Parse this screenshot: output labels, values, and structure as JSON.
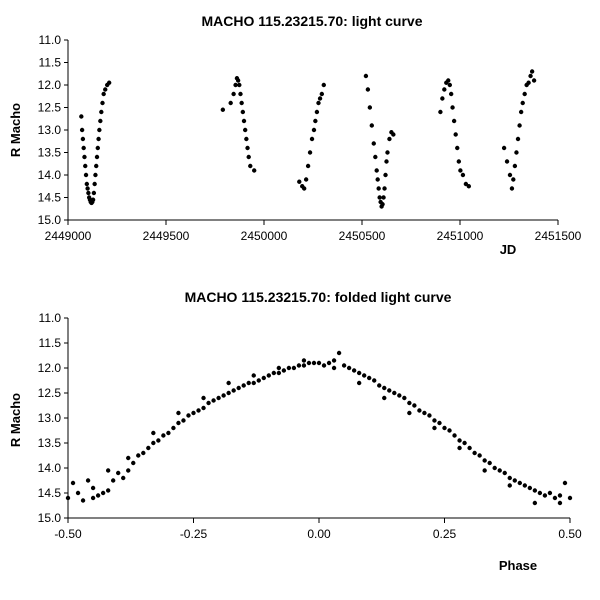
{
  "chart_data": [
    {
      "type": "scatter",
      "title": "MACHO 115.23215.70: light curve",
      "xlabel": "JD",
      "ylabel": "R Macho",
      "xlim": [
        2449000,
        2451500
      ],
      "ylim": [
        11.0,
        15.0
      ],
      "y_inverted": true,
      "grid": false,
      "legend": "none",
      "marker_color": "#000000",
      "x_ticks": [
        "2449000",
        "2449500",
        "2450000",
        "2450500",
        "2451000",
        "2451500"
      ],
      "y_ticks": [
        "11.0",
        "11.5",
        "12.0",
        "12.5",
        "13.0",
        "13.5",
        "14.0",
        "14.5",
        "15.0"
      ],
      "x_tick_values": [
        2449000,
        2449500,
        2450000,
        2450500,
        2451000,
        2451500
      ],
      "y_tick_values": [
        11.0,
        11.5,
        12.0,
        12.5,
        13.0,
        13.5,
        14.0,
        14.5,
        15.0
      ],
      "points": [
        [
          2449068,
          12.7
        ],
        [
          2449072,
          13.0
        ],
        [
          2449076,
          13.2
        ],
        [
          2449080,
          13.4
        ],
        [
          2449084,
          13.6
        ],
        [
          2449088,
          13.8
        ],
        [
          2449092,
          14.0
        ],
        [
          2449096,
          14.2
        ],
        [
          2449100,
          14.3
        ],
        [
          2449104,
          14.4
        ],
        [
          2449108,
          14.5
        ],
        [
          2449112,
          14.55
        ],
        [
          2449116,
          14.6
        ],
        [
          2449120,
          14.62
        ],
        [
          2449124,
          14.6
        ],
        [
          2449128,
          14.55
        ],
        [
          2449132,
          14.4
        ],
        [
          2449136,
          14.2
        ],
        [
          2449140,
          14.0
        ],
        [
          2449144,
          13.8
        ],
        [
          2449148,
          13.6
        ],
        [
          2449152,
          13.4
        ],
        [
          2449156,
          13.2
        ],
        [
          2449160,
          13.0
        ],
        [
          2449165,
          12.8
        ],
        [
          2449170,
          12.6
        ],
        [
          2449176,
          12.4
        ],
        [
          2449182,
          12.2
        ],
        [
          2449190,
          12.1
        ],
        [
          2449200,
          12.0
        ],
        [
          2449210,
          11.95
        ],
        [
          2449790,
          12.55
        ],
        [
          2449830,
          12.4
        ],
        [
          2449845,
          12.2
        ],
        [
          2449855,
          12.0
        ],
        [
          2449862,
          11.85
        ],
        [
          2449868,
          11.9
        ],
        [
          2449874,
          12.0
        ],
        [
          2449880,
          12.2
        ],
        [
          2449886,
          12.4
        ],
        [
          2449892,
          12.6
        ],
        [
          2449898,
          12.8
        ],
        [
          2449904,
          13.0
        ],
        [
          2449910,
          13.2
        ],
        [
          2449916,
          13.4
        ],
        [
          2449922,
          13.6
        ],
        [
          2449930,
          13.8
        ],
        [
          2449950,
          13.9
        ],
        [
          2450180,
          14.15
        ],
        [
          2450195,
          14.25
        ],
        [
          2450205,
          14.3
        ],
        [
          2450215,
          14.1
        ],
        [
          2450225,
          13.8
        ],
        [
          2450235,
          13.5
        ],
        [
          2450245,
          13.2
        ],
        [
          2450255,
          13.0
        ],
        [
          2450262,
          12.8
        ],
        [
          2450270,
          12.6
        ],
        [
          2450278,
          12.4
        ],
        [
          2450286,
          12.3
        ],
        [
          2450295,
          12.2
        ],
        [
          2450305,
          12.0
        ],
        [
          2450520,
          11.8
        ],
        [
          2450530,
          12.1
        ],
        [
          2450540,
          12.5
        ],
        [
          2450550,
          12.9
        ],
        [
          2450560,
          13.3
        ],
        [
          2450568,
          13.6
        ],
        [
          2450575,
          13.9
        ],
        [
          2450580,
          14.1
        ],
        [
          2450585,
          14.3
        ],
        [
          2450590,
          14.5
        ],
        [
          2450595,
          14.6
        ],
        [
          2450600,
          14.7
        ],
        [
          2450605,
          14.65
        ],
        [
          2450610,
          14.5
        ],
        [
          2450615,
          14.3
        ],
        [
          2450620,
          14.0
        ],
        [
          2450625,
          13.7
        ],
        [
          2450630,
          13.5
        ],
        [
          2450640,
          13.2
        ],
        [
          2450650,
          13.05
        ],
        [
          2450660,
          13.1
        ],
        [
          2450900,
          12.6
        ],
        [
          2450910,
          12.3
        ],
        [
          2450920,
          12.1
        ],
        [
          2450930,
          11.95
        ],
        [
          2450940,
          11.9
        ],
        [
          2450948,
          12.0
        ],
        [
          2450955,
          12.2
        ],
        [
          2450962,
          12.5
        ],
        [
          2450970,
          12.8
        ],
        [
          2450978,
          13.1
        ],
        [
          2450986,
          13.4
        ],
        [
          2450994,
          13.7
        ],
        [
          2451002,
          13.9
        ],
        [
          2451015,
          14.0
        ],
        [
          2451030,
          14.2
        ],
        [
          2451045,
          14.25
        ],
        [
          2451225,
          13.4
        ],
        [
          2451240,
          13.7
        ],
        [
          2451255,
          14.0
        ],
        [
          2451265,
          14.3
        ],
        [
          2451272,
          14.1
        ],
        [
          2451280,
          13.8
        ],
        [
          2451288,
          13.5
        ],
        [
          2451296,
          13.2
        ],
        [
          2451304,
          12.9
        ],
        [
          2451312,
          12.6
        ],
        [
          2451320,
          12.4
        ],
        [
          2451330,
          12.2
        ],
        [
          2451340,
          12.0
        ],
        [
          2451350,
          11.95
        ],
        [
          2451360,
          11.8
        ],
        [
          2451368,
          11.7
        ],
        [
          2451378,
          11.9
        ]
      ]
    },
    {
      "type": "scatter",
      "title": "MACHO 115.23215.70: folded light curve",
      "xlabel": "Phase",
      "ylabel": "R Macho",
      "xlim": [
        -0.5,
        0.5
      ],
      "ylim": [
        11.0,
        15.0
      ],
      "y_inverted": true,
      "grid": false,
      "legend": "none",
      "marker_color": "#000000",
      "x_ticks": [
        "-0.50",
        "-0.25",
        "0.00",
        "0.25",
        "0.50"
      ],
      "y_ticks": [
        "11.0",
        "11.5",
        "12.0",
        "12.5",
        "13.0",
        "13.5",
        "14.0",
        "14.5",
        "15.0"
      ],
      "x_tick_values": [
        -0.5,
        -0.25,
        0.0,
        0.25,
        0.5
      ],
      "y_tick_values": [
        11.0,
        11.5,
        12.0,
        12.5,
        13.0,
        13.5,
        14.0,
        14.5,
        15.0
      ],
      "points": [
        [
          -0.5,
          14.6
        ],
        [
          -0.49,
          14.3
        ],
        [
          -0.48,
          14.5
        ],
        [
          -0.47,
          14.65
        ],
        [
          -0.46,
          14.25
        ],
        [
          -0.45,
          14.6
        ],
        [
          -0.44,
          14.55
        ],
        [
          -0.43,
          14.5
        ],
        [
          -0.42,
          14.45
        ],
        [
          -0.41,
          14.25
        ],
        [
          -0.4,
          14.1
        ],
        [
          -0.39,
          14.2
        ],
        [
          -0.38,
          14.05
        ],
        [
          -0.37,
          13.9
        ],
        [
          -0.36,
          13.75
        ],
        [
          -0.35,
          13.7
        ],
        [
          -0.34,
          13.6
        ],
        [
          -0.33,
          13.5
        ],
        [
          -0.32,
          13.45
        ],
        [
          -0.31,
          13.35
        ],
        [
          -0.3,
          13.3
        ],
        [
          -0.29,
          13.2
        ],
        [
          -0.28,
          13.1
        ],
        [
          -0.27,
          13.05
        ],
        [
          -0.26,
          12.95
        ],
        [
          -0.25,
          12.9
        ],
        [
          -0.24,
          12.85
        ],
        [
          -0.23,
          12.8
        ],
        [
          -0.22,
          12.7
        ],
        [
          -0.21,
          12.65
        ],
        [
          -0.2,
          12.6
        ],
        [
          -0.19,
          12.55
        ],
        [
          -0.18,
          12.5
        ],
        [
          -0.17,
          12.45
        ],
        [
          -0.16,
          12.4
        ],
        [
          -0.15,
          12.35
        ],
        [
          -0.14,
          12.3
        ],
        [
          -0.13,
          12.3
        ],
        [
          -0.12,
          12.25
        ],
        [
          -0.11,
          12.2
        ],
        [
          -0.1,
          12.15
        ],
        [
          -0.09,
          12.1
        ],
        [
          -0.08,
          12.1
        ],
        [
          -0.07,
          12.05
        ],
        [
          -0.06,
          12.0
        ],
        [
          -0.05,
          12.0
        ],
        [
          -0.04,
          11.95
        ],
        [
          -0.03,
          11.95
        ],
        [
          -0.02,
          11.9
        ],
        [
          -0.01,
          11.9
        ],
        [
          0.0,
          11.9
        ],
        [
          0.01,
          11.95
        ],
        [
          0.02,
          11.9
        ],
        [
          0.03,
          11.85
        ],
        [
          0.04,
          11.7
        ],
        [
          0.05,
          11.95
        ],
        [
          0.06,
          12.0
        ],
        [
          0.07,
          12.05
        ],
        [
          0.08,
          12.1
        ],
        [
          0.09,
          12.15
        ],
        [
          0.1,
          12.2
        ],
        [
          0.11,
          12.25
        ],
        [
          0.12,
          12.35
        ],
        [
          0.13,
          12.4
        ],
        [
          0.14,
          12.45
        ],
        [
          0.15,
          12.5
        ],
        [
          0.16,
          12.55
        ],
        [
          0.17,
          12.6
        ],
        [
          0.18,
          12.7
        ],
        [
          0.19,
          12.75
        ],
        [
          0.2,
          12.85
        ],
        [
          0.21,
          12.9
        ],
        [
          0.22,
          12.95
        ],
        [
          0.23,
          13.05
        ],
        [
          0.24,
          13.1
        ],
        [
          0.25,
          13.2
        ],
        [
          0.26,
          13.25
        ],
        [
          0.27,
          13.35
        ],
        [
          0.28,
          13.45
        ],
        [
          0.29,
          13.5
        ],
        [
          0.3,
          13.6
        ],
        [
          0.31,
          13.7
        ],
        [
          0.32,
          13.75
        ],
        [
          0.33,
          13.85
        ],
        [
          0.34,
          13.9
        ],
        [
          0.35,
          14.0
        ],
        [
          0.36,
          14.05
        ],
        [
          0.37,
          14.1
        ],
        [
          0.38,
          14.2
        ],
        [
          0.39,
          14.25
        ],
        [
          0.4,
          14.3
        ],
        [
          0.41,
          14.35
        ],
        [
          0.42,
          14.4
        ],
        [
          0.43,
          14.45
        ],
        [
          0.44,
          14.5
        ],
        [
          0.45,
          14.55
        ],
        [
          0.46,
          14.5
        ],
        [
          0.47,
          14.6
        ],
        [
          0.48,
          14.55
        ],
        [
          0.49,
          14.3
        ],
        [
          0.5,
          14.6
        ],
        [
          -0.45,
          14.4
        ],
        [
          -0.42,
          14.05
        ],
        [
          -0.38,
          13.8
        ],
        [
          -0.33,
          13.3
        ],
        [
          -0.28,
          12.9
        ],
        [
          -0.23,
          12.6
        ],
        [
          -0.18,
          12.3
        ],
        [
          -0.13,
          12.15
        ],
        [
          -0.08,
          12.0
        ],
        [
          -0.03,
          11.85
        ],
        [
          0.03,
          12.0
        ],
        [
          0.08,
          12.3
        ],
        [
          0.13,
          12.6
        ],
        [
          0.18,
          12.9
        ],
        [
          0.23,
          13.2
        ],
        [
          0.28,
          13.6
        ],
        [
          0.33,
          14.05
        ],
        [
          0.38,
          14.35
        ],
        [
          0.43,
          14.7
        ],
        [
          0.48,
          14.7
        ]
      ]
    }
  ]
}
